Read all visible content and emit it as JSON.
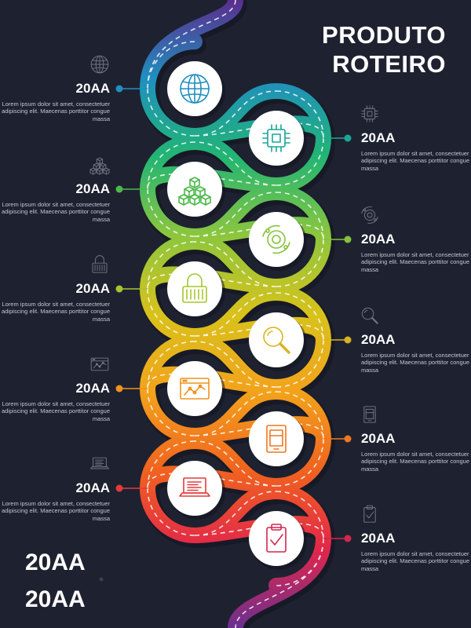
{
  "title": {
    "line1": "PRODUTO",
    "line2": "ROTEIRO"
  },
  "colors": {
    "background": "#1e2230",
    "road_gradient": [
      "#5b2d8e",
      "#1f8fbf",
      "#22b573",
      "#8cc63e",
      "#d8c21b",
      "#f3a21b",
      "#f0621f",
      "#e2264a",
      "#6a2f90"
    ],
    "node_fill": "#ffffff",
    "dash": "#ffffff"
  },
  "milestones": [
    {
      "side": "left",
      "label": "20AA",
      "description": "Lorem ipsum dolor sit amet, consectetuer adipiscing elit. Maecenas porttitor congue massa",
      "icon": "globe-icon",
      "color": "#1f8fbf"
    },
    {
      "side": "right",
      "label": "20AA",
      "description": "Lorem ipsum dolor sit amet, consectetuer adipiscing elit. Maecenas porttitor congue massa",
      "icon": "chip-icon",
      "color": "#1aa796"
    },
    {
      "side": "left",
      "label": "20AA",
      "description": "Lorem ipsum dolor sit amet, consectetuer adipiscing elit. Maecenas porttitor congue massa",
      "icon": "cubes-icon",
      "color": "#4cb84a"
    },
    {
      "side": "right",
      "label": "20AA",
      "description": "Lorem ipsum dolor sit amet, consectetuer adipiscing elit. Maecenas porttitor congue massa",
      "icon": "orbit-icon",
      "color": "#86c23c"
    },
    {
      "side": "left",
      "label": "20AA",
      "description": "Lorem ipsum dolor sit amet, consectetuer adipiscing elit. Maecenas porttitor congue massa",
      "icon": "padlock-icon",
      "color": "#a6c62e"
    },
    {
      "side": "right",
      "label": "20AA",
      "description": "Lorem ipsum dolor sit amet, consectetuer adipiscing elit. Maecenas porttitor congue massa",
      "icon": "magnifier-icon",
      "color": "#d9b420"
    },
    {
      "side": "left",
      "label": "20AA",
      "description": "Lorem ipsum dolor sit amet, consectetuer adipiscing elit. Maecenas porttitor congue massa",
      "icon": "chart-window-icon",
      "color": "#f1921d"
    },
    {
      "side": "right",
      "label": "20AA",
      "description": "Lorem ipsum dolor sit amet, consectetuer adipiscing elit. Maecenas porttitor congue massa",
      "icon": "tablet-icon",
      "color": "#f0771f"
    },
    {
      "side": "left",
      "label": "20AA",
      "description": "Lorem ipsum dolor sit amet, consectetuer adipiscing elit. Maecenas porttitor congue massa",
      "icon": "laptop-icon",
      "color": "#e53a3a"
    },
    {
      "side": "right",
      "label": "20AA",
      "description": "Lorem ipsum dolor sit amet, consectetuer adipiscing elit. Maecenas porttitor congue massa",
      "icon": "clipboard-check-icon",
      "color": "#d3264e"
    }
  ],
  "footer": {
    "line1": "20AA",
    "line2": "20AA"
  }
}
